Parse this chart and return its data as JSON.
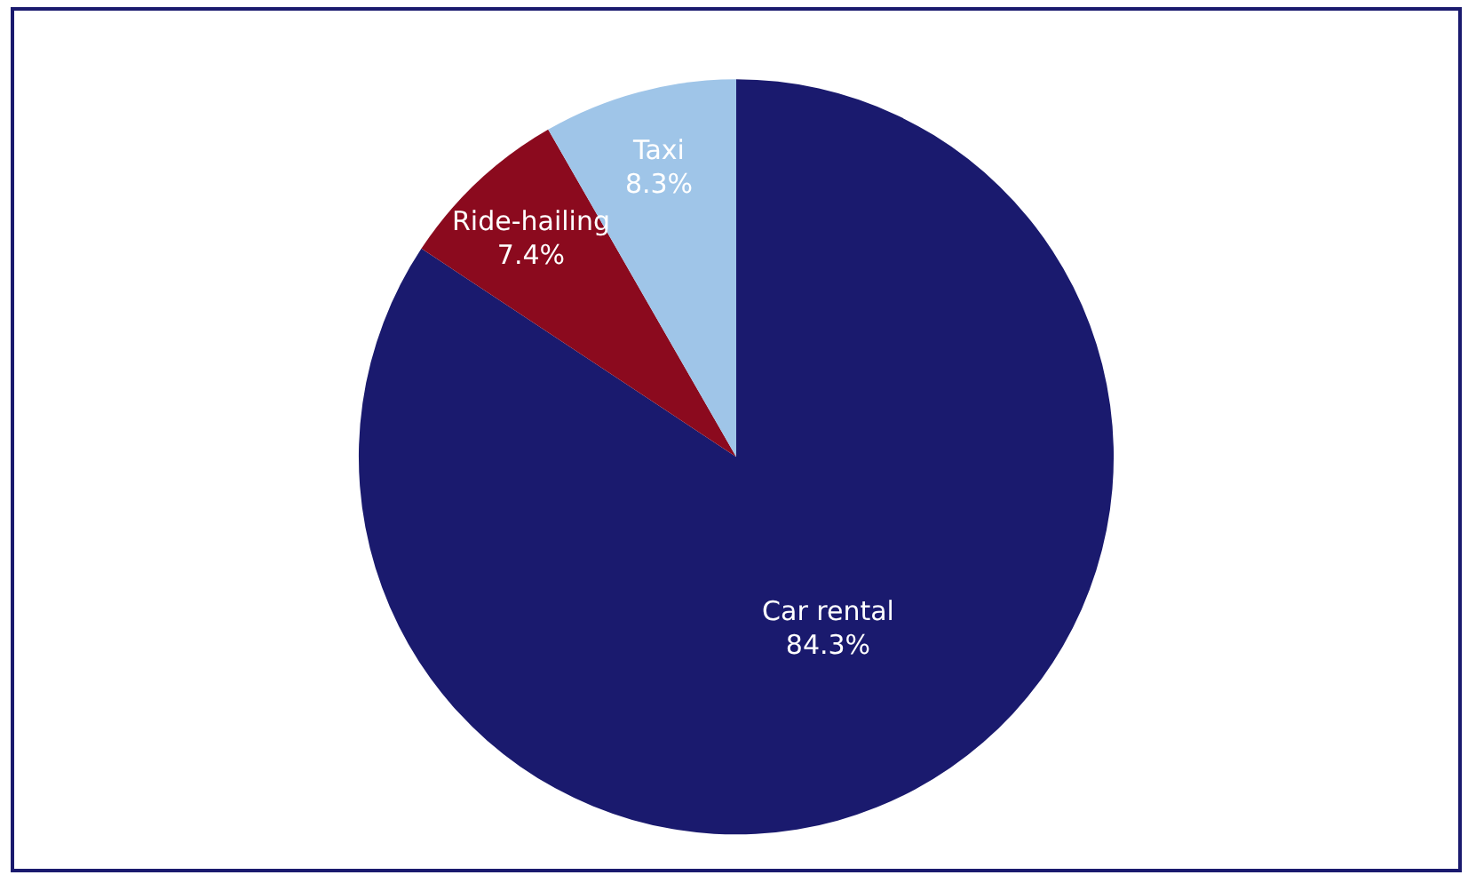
{
  "chart_data": {
    "type": "pie",
    "categories": [
      "Car rental",
      "Ride-hailing",
      "Taxi"
    ],
    "values": [
      84.3,
      7.4,
      8.3
    ],
    "value_labels": [
      "84.3%",
      "7.4%",
      "8.3%"
    ],
    "colors": [
      "#1a1a6e",
      "#8b0a1e",
      "#9fc5e8"
    ],
    "legend": false
  }
}
